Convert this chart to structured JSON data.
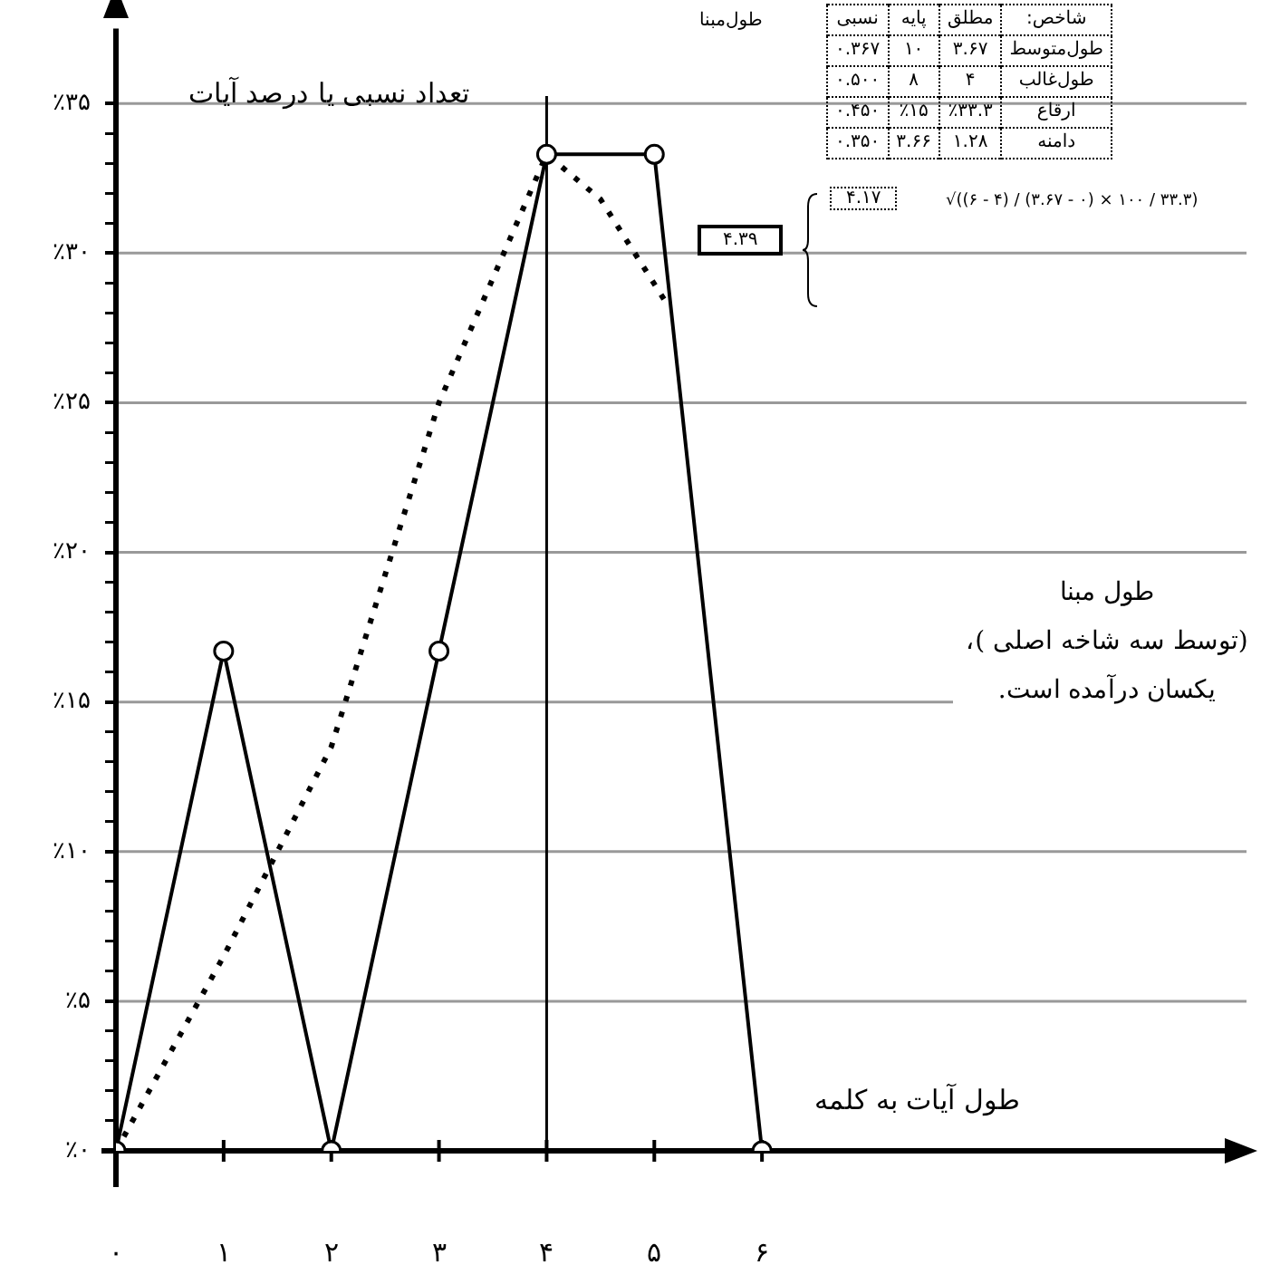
{
  "chart_data": {
    "type": "line",
    "xlabel": "طول آیات به کلمه",
    "ylabel": "تعداد نسبی یا درصد آیات",
    "xlim": [
      0,
      10.5
    ],
    "ylim": [
      0,
      37.5
    ],
    "xticks": [
      {
        "value": 0,
        "label": "۰"
      },
      {
        "value": 1,
        "label": "۱"
      },
      {
        "value": 2,
        "label": "۲"
      },
      {
        "value": 3,
        "label": "۳"
      },
      {
        "value": 4,
        "label": "۴"
      },
      {
        "value": 5,
        "label": "۵"
      },
      {
        "value": 6,
        "label": "۶"
      }
    ],
    "yticks": [
      {
        "value": 0,
        "label": "٪۰"
      },
      {
        "value": 1,
        "label": null
      },
      {
        "value": 2,
        "label": null
      },
      {
        "value": 3,
        "label": null
      },
      {
        "value": 4,
        "label": null
      },
      {
        "value": 5,
        "label": "٪۵"
      },
      {
        "value": 6,
        "label": null
      },
      {
        "value": 7,
        "label": null
      },
      {
        "value": 8,
        "label": null
      },
      {
        "value": 9,
        "label": null
      },
      {
        "value": 10,
        "label": "٪۱۰"
      },
      {
        "value": 11,
        "label": null
      },
      {
        "value": 12,
        "label": null
      },
      {
        "value": 13,
        "label": null
      },
      {
        "value": 14,
        "label": null
      },
      {
        "value": 15,
        "label": "٪۱۵"
      },
      {
        "value": 16,
        "label": null
      },
      {
        "value": 17,
        "label": null
      },
      {
        "value": 18,
        "label": null
      },
      {
        "value": 19,
        "label": null
      },
      {
        "value": 20,
        "label": "٪۲۰"
      },
      {
        "value": 21,
        "label": null
      },
      {
        "value": 22,
        "label": null
      },
      {
        "value": 23,
        "label": null
      },
      {
        "value": 24,
        "label": null
      },
      {
        "value": 25,
        "label": "٪۲۵"
      },
      {
        "value": 26,
        "label": null
      },
      {
        "value": 27,
        "label": null
      },
      {
        "value": 28,
        "label": null
      },
      {
        "value": 29,
        "label": null
      },
      {
        "value": 30,
        "label": "٪۳۰"
      },
      {
        "value": 31,
        "label": null
      },
      {
        "value": 32,
        "label": null
      },
      {
        "value": 33,
        "label": null
      },
      {
        "value": 34,
        "label": null
      },
      {
        "value": 35,
        "label": "٪۳۵"
      }
    ],
    "grid": "y",
    "legend": false,
    "series": [
      {
        "color": "#000000",
        "marker": "circle",
        "line_style": "solid",
        "x": [
          0,
          1,
          2,
          3,
          4,
          5,
          6
        ],
        "values": [
          0,
          16.7,
          0,
          16.7,
          33.3,
          33.3,
          0
        ]
      },
      {
        "color": "#000000",
        "marker": "none",
        "line_style": "dotted",
        "x": [
          0,
          1,
          2,
          3,
          4,
          4.5,
          5.1
        ],
        "values": [
          0,
          6.5,
          13.5,
          25,
          33.3,
          31.8,
          28.4
        ]
      }
    ],
    "ref_lines": [
      {
        "axis": "x",
        "value": 4,
        "color": "#000000"
      }
    ],
    "annotations": [
      "شاخص:",
      "مطلق",
      "پایه",
      "نسبی",
      "طول‌متوسط",
      "۳.۶۷",
      "۱۰",
      "۰.۳۶۷",
      "طول‌غالب",
      "۴",
      "۸",
      "۰.۵۰۰",
      "ارقاع",
      "٪۳۳.۳",
      "٪۱۵",
      "۰.۴۵۰",
      "دامنه",
      "۱.۲۸",
      "۳.۶۶",
      "۰.۳۵۰",
      "طول‌مبنا",
      "۴.۳۹",
      "۴.۱۷",
      "√((۶ - ۴) / (۳.۶۷ - ۰) × ۱۰۰ / ۳۳.۳)",
      "طول مبنا\n(توسط سه شاخه اصلی )،\nیکسان درآمده است."
    ]
  }
}
